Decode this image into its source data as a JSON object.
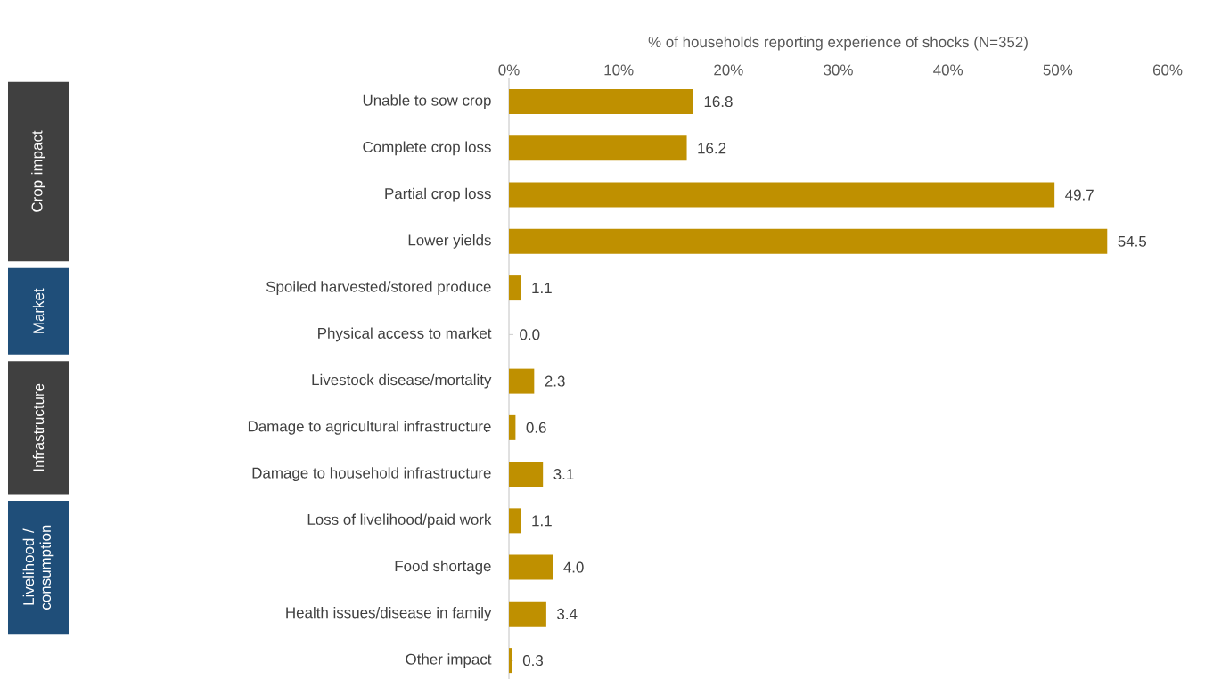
{
  "chart_data": {
    "type": "bar",
    "orientation": "horizontal",
    "xlabel": "% of households reporting experience of shocks (N=352)",
    "categories": [
      "Unable to sow crop",
      "Complete crop loss",
      "Partial crop loss",
      "Lower yields",
      "Spoiled harvested/stored produce",
      "Physical access to market",
      "Livestock disease/mortality",
      "Damage to agricultural infrastructure",
      "Damage to household infrastructure",
      "Loss of livelihood/paid work",
      "Food shortage",
      "Health issues/disease in family",
      "Other impact"
    ],
    "values": [
      16.8,
      16.2,
      49.7,
      54.5,
      1.1,
      0.0,
      2.3,
      0.6,
      3.1,
      1.1,
      4.0,
      3.4,
      0.3
    ],
    "value_labels": [
      "16.8",
      "16.2",
      "49.7",
      "54.5",
      "1.1",
      "0.0",
      "2.3",
      "0.6",
      "3.1",
      "1.1",
      "4.0",
      "3.4",
      "0.3"
    ],
    "color": "#bf9000",
    "xlim": [
      0,
      60
    ],
    "xticks": [
      {
        "value": 0,
        "label": "0%"
      },
      {
        "value": 10,
        "label": "10%"
      },
      {
        "value": 20,
        "label": "20%"
      },
      {
        "value": 30,
        "label": "30%"
      },
      {
        "value": 40,
        "label": "40%"
      },
      {
        "value": 50,
        "label": "50%"
      },
      {
        "value": 60,
        "label": "60%"
      }
    ],
    "annotations": [
      "Crop impact",
      "Market",
      "Infrastructure",
      "Livelihood / consumption"
    ]
  }
}
